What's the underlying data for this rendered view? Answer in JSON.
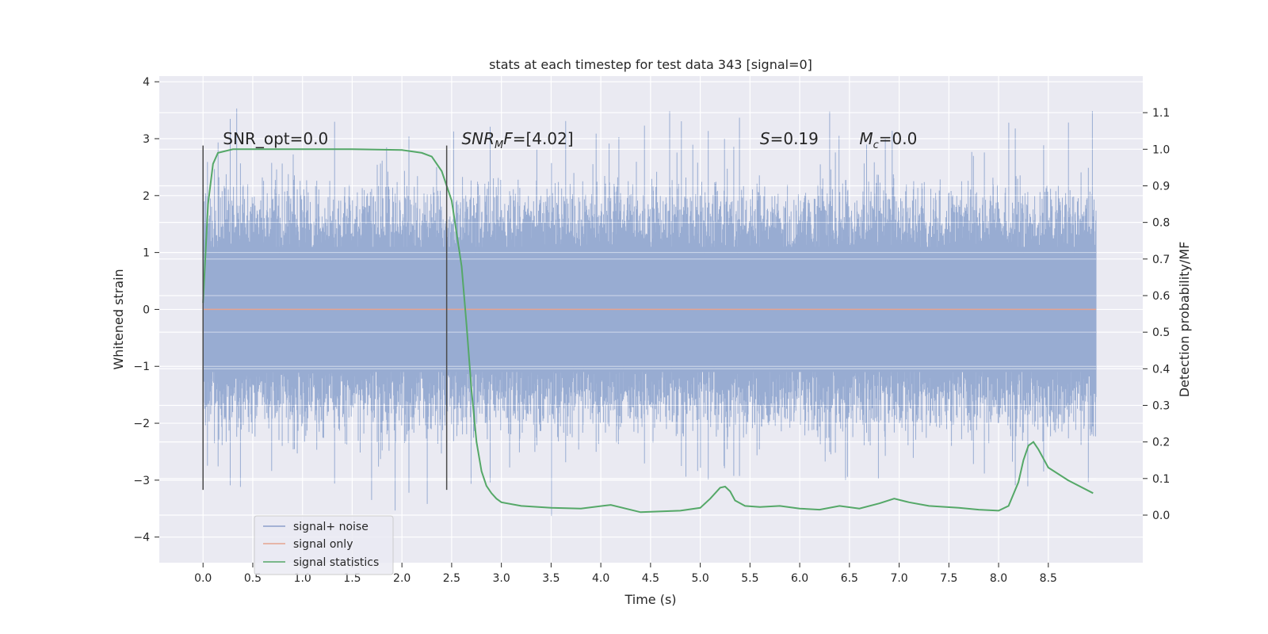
{
  "chart_data": {
    "type": "line",
    "title": "stats at each timestep for test data 343 [signal=0]",
    "xlabel": "Time (s)",
    "ylabel": "Whitened strain",
    "y2label": "Detection probability/MF",
    "xlim": [
      -0.44,
      9.45
    ],
    "ylim": [
      -4.45,
      4.1
    ],
    "y2lim": [
      -0.13,
      1.2
    ],
    "xticks": [
      0.0,
      0.5,
      1.0,
      1.5,
      2.0,
      2.5,
      3.0,
      3.5,
      4.0,
      4.5,
      5.0,
      5.5,
      6.0,
      6.5,
      7.0,
      7.5,
      8.0,
      8.5
    ],
    "xtick_labels": [
      "0.0",
      "0.5",
      "1.0",
      "1.5",
      "2.0",
      "2.5",
      "3.0",
      "3.5",
      "4.0",
      "4.5",
      "5.0",
      "5.5",
      "6.0",
      "6.5",
      "7.0",
      "7.5",
      "8.0",
      "8.5"
    ],
    "yticks": [
      -4,
      -3,
      -2,
      -1,
      0,
      1,
      2,
      3,
      4
    ],
    "ytick_labels": [
      "−4",
      "−3",
      "−2",
      "−1",
      "0",
      "1",
      "2",
      "3",
      "4"
    ],
    "y2ticks": [
      0.0,
      0.1,
      0.2,
      0.3,
      0.4,
      0.5,
      0.6,
      0.7,
      0.8,
      0.9,
      1.0,
      1.1
    ],
    "y2tick_labels": [
      "0.0",
      "0.1",
      "0.2",
      "0.3",
      "0.4",
      "0.5",
      "0.6",
      "0.7",
      "0.8",
      "0.9",
      "1.0",
      "1.1"
    ],
    "grid": true,
    "legend_position": "lower-left",
    "noise": {
      "x_start": 0.0,
      "x_end": 8.98,
      "core_amplitude": 1.5,
      "max_amplitude": 3.7
    },
    "series": [
      {
        "name": "signal+ noise",
        "color": "#8da0cb",
        "axis": "left"
      },
      {
        "name": "signal only",
        "color": "#e5a38f",
        "axis": "left",
        "x": [
          0.0,
          8.98
        ],
        "y": [
          0.0,
          0.0
        ]
      },
      {
        "name": "signal statistics",
        "color": "#55a868",
        "axis": "right",
        "x": [
          0.0,
          0.05,
          0.1,
          0.15,
          0.3,
          1.0,
          1.5,
          2.0,
          2.2,
          2.3,
          2.4,
          2.5,
          2.6,
          2.65,
          2.7,
          2.75,
          2.8,
          2.85,
          2.9,
          2.95,
          3.0,
          3.2,
          3.5,
          3.8,
          4.1,
          4.4,
          4.8,
          5.0,
          5.1,
          5.2,
          5.25,
          5.3,
          5.35,
          5.45,
          5.6,
          5.8,
          6.0,
          6.2,
          6.4,
          6.6,
          6.8,
          6.95,
          7.1,
          7.3,
          7.6,
          7.8,
          8.0,
          8.1,
          8.2,
          8.25,
          8.3,
          8.35,
          8.4,
          8.5,
          8.7,
          8.95
        ],
        "y": [
          0.58,
          0.85,
          0.96,
          0.99,
          1.0,
          1.0,
          1.0,
          0.998,
          0.99,
          0.98,
          0.94,
          0.86,
          0.68,
          0.52,
          0.34,
          0.2,
          0.12,
          0.08,
          0.06,
          0.045,
          0.035,
          0.025,
          0.02,
          0.018,
          0.028,
          0.008,
          0.012,
          0.02,
          0.045,
          0.075,
          0.078,
          0.065,
          0.04,
          0.025,
          0.022,
          0.025,
          0.018,
          0.015,
          0.025,
          0.018,
          0.032,
          0.045,
          0.035,
          0.025,
          0.02,
          0.015,
          0.012,
          0.025,
          0.09,
          0.15,
          0.19,
          0.2,
          0.18,
          0.13,
          0.095,
          0.06
        ]
      }
    ],
    "vlines": [
      {
        "x": 0.0,
        "ymin": -3.17,
        "ymax": 2.88
      },
      {
        "x": 2.45,
        "ymin": -3.17,
        "ymax": 2.88
      }
    ],
    "annotations": [
      {
        "x": 0.2,
        "y": 3.0,
        "plain": "SNR_opt=0.0"
      },
      {
        "x": 2.6,
        "y": 3.0,
        "main": "SNR",
        "sub": "M",
        "tail": "F",
        "value": "=[4.02]"
      },
      {
        "x": 5.6,
        "y": 3.0,
        "main": "S",
        "value": "=0.19"
      },
      {
        "x": 6.6,
        "y": 3.0,
        "main": "M",
        "sub": "c",
        "value": "=0.0"
      }
    ]
  }
}
